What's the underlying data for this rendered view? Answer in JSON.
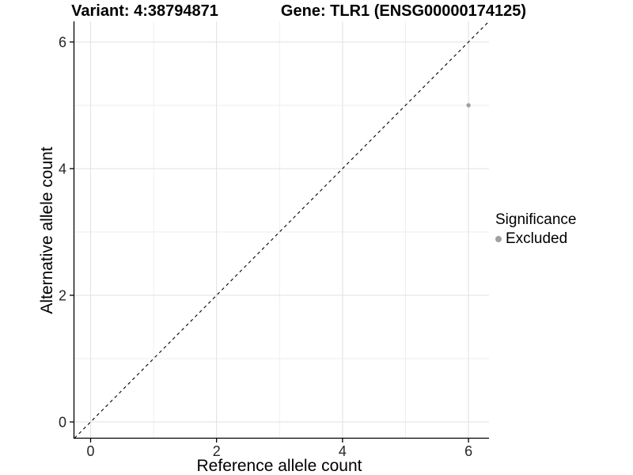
{
  "figure": {
    "background": "#ffffff"
  },
  "chart_data": {
    "type": "scatter",
    "titles": {
      "left": "Variant: 4:38794871",
      "right": "Gene: TLR1 (ENSG00000174125)"
    },
    "xlabel": "Reference allele count",
    "ylabel": "Alternative allele count",
    "x_ticks": [
      0,
      2,
      4,
      6
    ],
    "y_ticks": [
      0,
      2,
      4,
      6
    ],
    "minor_ticks": [
      1,
      3,
      5
    ],
    "xlim": [
      -0.26,
      6.33
    ],
    "ylim": [
      -0.26,
      6.33
    ],
    "points": [
      {
        "x": 6,
        "y": 5,
        "series": "Excluded"
      }
    ],
    "reference_line": {
      "equation": "y = x",
      "style": "dashed",
      "color": "#000000"
    },
    "grid": {
      "major": true,
      "minor": true
    },
    "colors": {
      "major_grid": "#e2e2e2",
      "minor_grid": "#eeeeee",
      "axis": "#000000",
      "tick_text": "#262626",
      "point": "#a0a0a0"
    },
    "legend": {
      "title": "Significance",
      "position": "right",
      "entries": [
        {
          "label": "Excluded",
          "color": "#a0a0a0",
          "marker": "circle-icon"
        }
      ]
    }
  }
}
